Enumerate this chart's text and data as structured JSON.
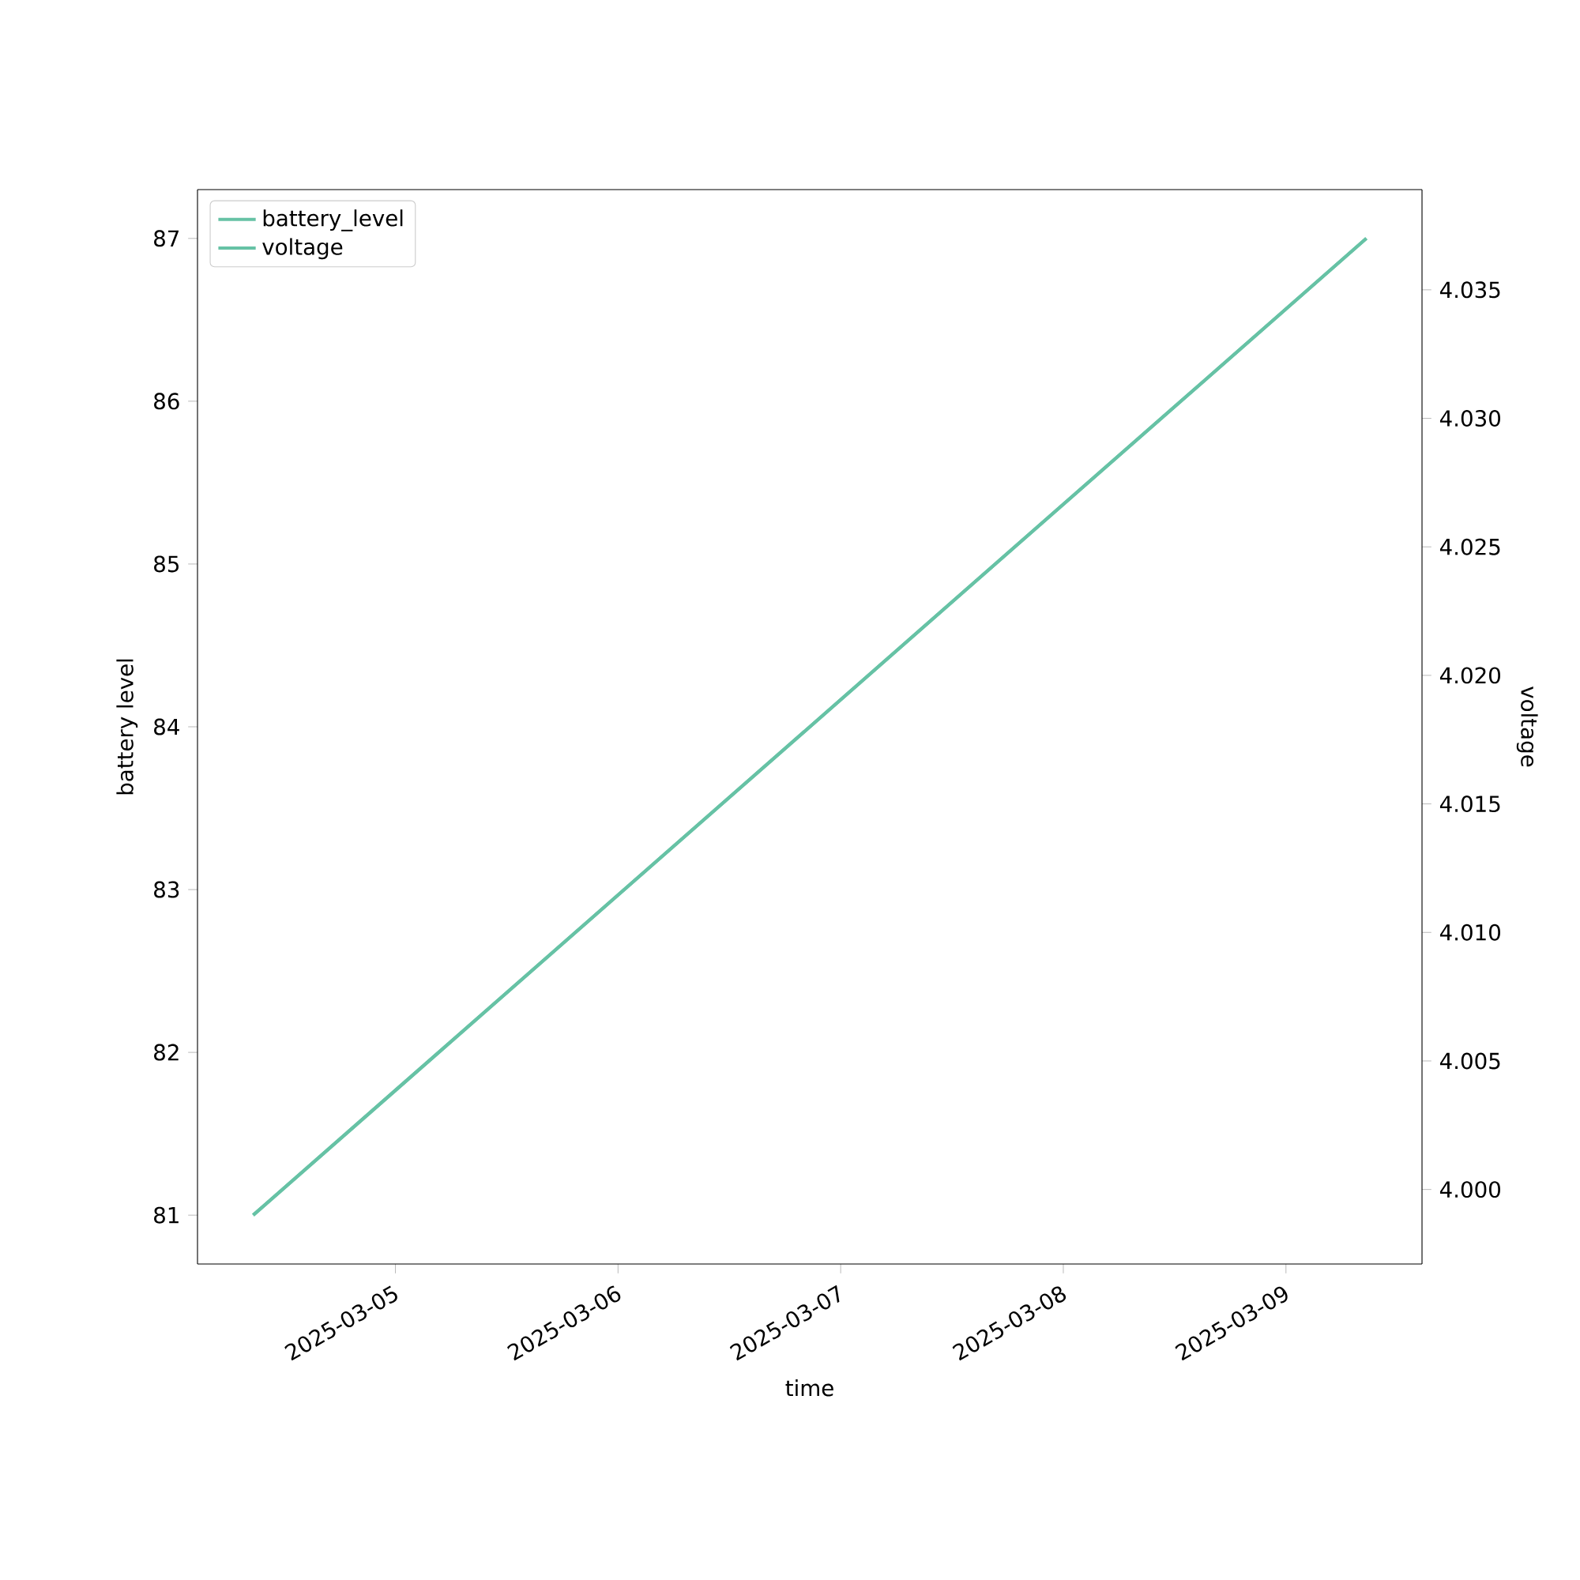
{
  "chart_data": {
    "type": "line",
    "xlabel": "time",
    "ylabel": "battery level",
    "y2label": "voltage",
    "x": [
      "2025-03-04T08:40",
      "2025-03-09T08:40"
    ],
    "series": [
      {
        "name": "battery_level",
        "color": "#66c2a5",
        "values": [
          81,
          87
        ]
      },
      {
        "name": "voltage",
        "color": "#66c2a5",
        "values": [
          3.999,
          4.037
        ],
        "axis": "y2"
      }
    ],
    "xlim": [
      "2025-03-04T02:40",
      "2025-03-09T14:40"
    ],
    "xticks": [
      "2025-03-05",
      "2025-03-06",
      "2025-03-07",
      "2025-03-08",
      "2025-03-09"
    ],
    "ylim": [
      80.7,
      87.3
    ],
    "yticks": [
      81,
      82,
      83,
      84,
      85,
      86,
      87
    ],
    "y2lim": [
      3.9971,
      4.0389
    ],
    "y2ticks": [
      {
        "value": 4.0,
        "label": "4.000"
      },
      {
        "value": 4.005,
        "label": "4.005"
      },
      {
        "value": 4.01,
        "label": "4.010"
      },
      {
        "value": 4.015,
        "label": "4.015"
      },
      {
        "value": 4.02,
        "label": "4.020"
      },
      {
        "value": 4.025,
        "label": "4.025"
      },
      {
        "value": 4.03,
        "label": "4.030"
      },
      {
        "value": 4.035,
        "label": "4.035"
      }
    ],
    "legend": "top left",
    "grid": false
  }
}
